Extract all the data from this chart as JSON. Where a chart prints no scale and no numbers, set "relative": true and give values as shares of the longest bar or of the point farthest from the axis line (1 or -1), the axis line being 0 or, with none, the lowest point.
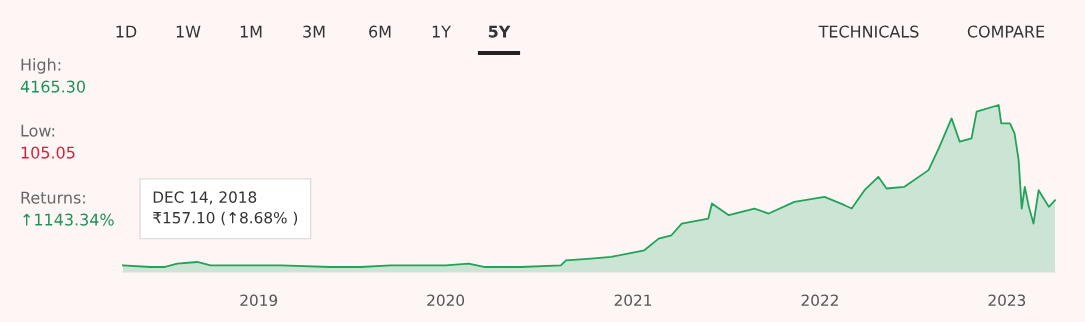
{
  "chart_data": {
    "type": "area",
    "relative": true,
    "x": [
      "2018-04-11",
      "2018-06-03",
      "2018-07-02",
      "2018-07-26",
      "2018-09-03",
      "2018-09-29",
      "2018-11-27",
      "2018-12-14",
      "2019-02-13",
      "2019-05-21",
      "2019-07-19",
      "2019-09-16",
      "2019-11-13",
      "2020-01-01",
      "2020-02-15",
      "2020-03-16",
      "2020-05-27",
      "2020-08-13",
      "2020-08-23",
      "2020-10-11",
      "2020-11-19",
      "2021-01-23",
      "2021-02-20",
      "2021-03-17",
      "2021-04-06",
      "2021-05-28",
      "2021-06-04",
      "2021-07-07",
      "2021-08-26",
      "2021-09-23",
      "2021-11-12",
      "2022-01-10",
      "2022-02-18",
      "2022-03-04",
      "2022-03-29",
      "2022-04-25",
      "2022-05-11",
      "2022-06-15",
      "2022-08-01",
      "2022-08-21",
      "2022-09-15",
      "2022-10-01",
      "2022-10-24",
      "2022-11-03",
      "2022-12-16",
      "2022-12-21",
      "2023-01-07",
      "2023-01-16",
      "2023-01-24",
      "2023-01-30",
      "2023-02-05",
      "2023-02-13",
      "2023-02-22",
      "2023-03-04",
      "2023-03-24",
      "2023-04-05"
    ],
    "series": [
      {
        "color": "#22a35a",
        "values": [
          0.04,
          0.03,
          0.03,
          0.05,
          0.06,
          0.04,
          0.04,
          0.04,
          0.04,
          0.03,
          0.03,
          0.04,
          0.04,
          0.04,
          0.05,
          0.03,
          0.03,
          0.04,
          0.07,
          0.08,
          0.09,
          0.13,
          0.2,
          0.22,
          0.29,
          0.32,
          0.41,
          0.34,
          0.38,
          0.35,
          0.42,
          0.45,
          0.4,
          0.38,
          0.49,
          0.57,
          0.5,
          0.51,
          0.61,
          0.74,
          0.92,
          0.78,
          0.8,
          0.96,
          1,
          0.89,
          0.89,
          0.83,
          0.67,
          0.38,
          0.51,
          0.39,
          0.29,
          0.49,
          0.39,
          0.43
        ]
      }
    ],
    "xlim": [
      "2018-04-11",
      "2023-04-05"
    ],
    "xticks": [
      {
        "value": "2019-01-01",
        "label": "2019"
      },
      {
        "value": "2020-01-01",
        "label": "2020"
      },
      {
        "value": "2021-01-01",
        "label": "2021"
      },
      {
        "value": "2022-01-01",
        "label": "2022"
      },
      {
        "value": "2023-01-01",
        "label": "2023"
      }
    ],
    "grid": false,
    "legend": false,
    "annotations": [
      "1D",
      "1W",
      "1M",
      "3M",
      "6M",
      "1Y",
      "5Y",
      "TECHNICALS",
      "COMPARE",
      "High:",
      "4165.30",
      "Low:",
      "105.05",
      "Returns:",
      "↑1143.34%",
      {
        "text": "DEC 14, 2018\n₹157.10 (↑8.68% )",
        "x": "2018-12-14",
        "y": 0.04
      }
    ]
  }
}
